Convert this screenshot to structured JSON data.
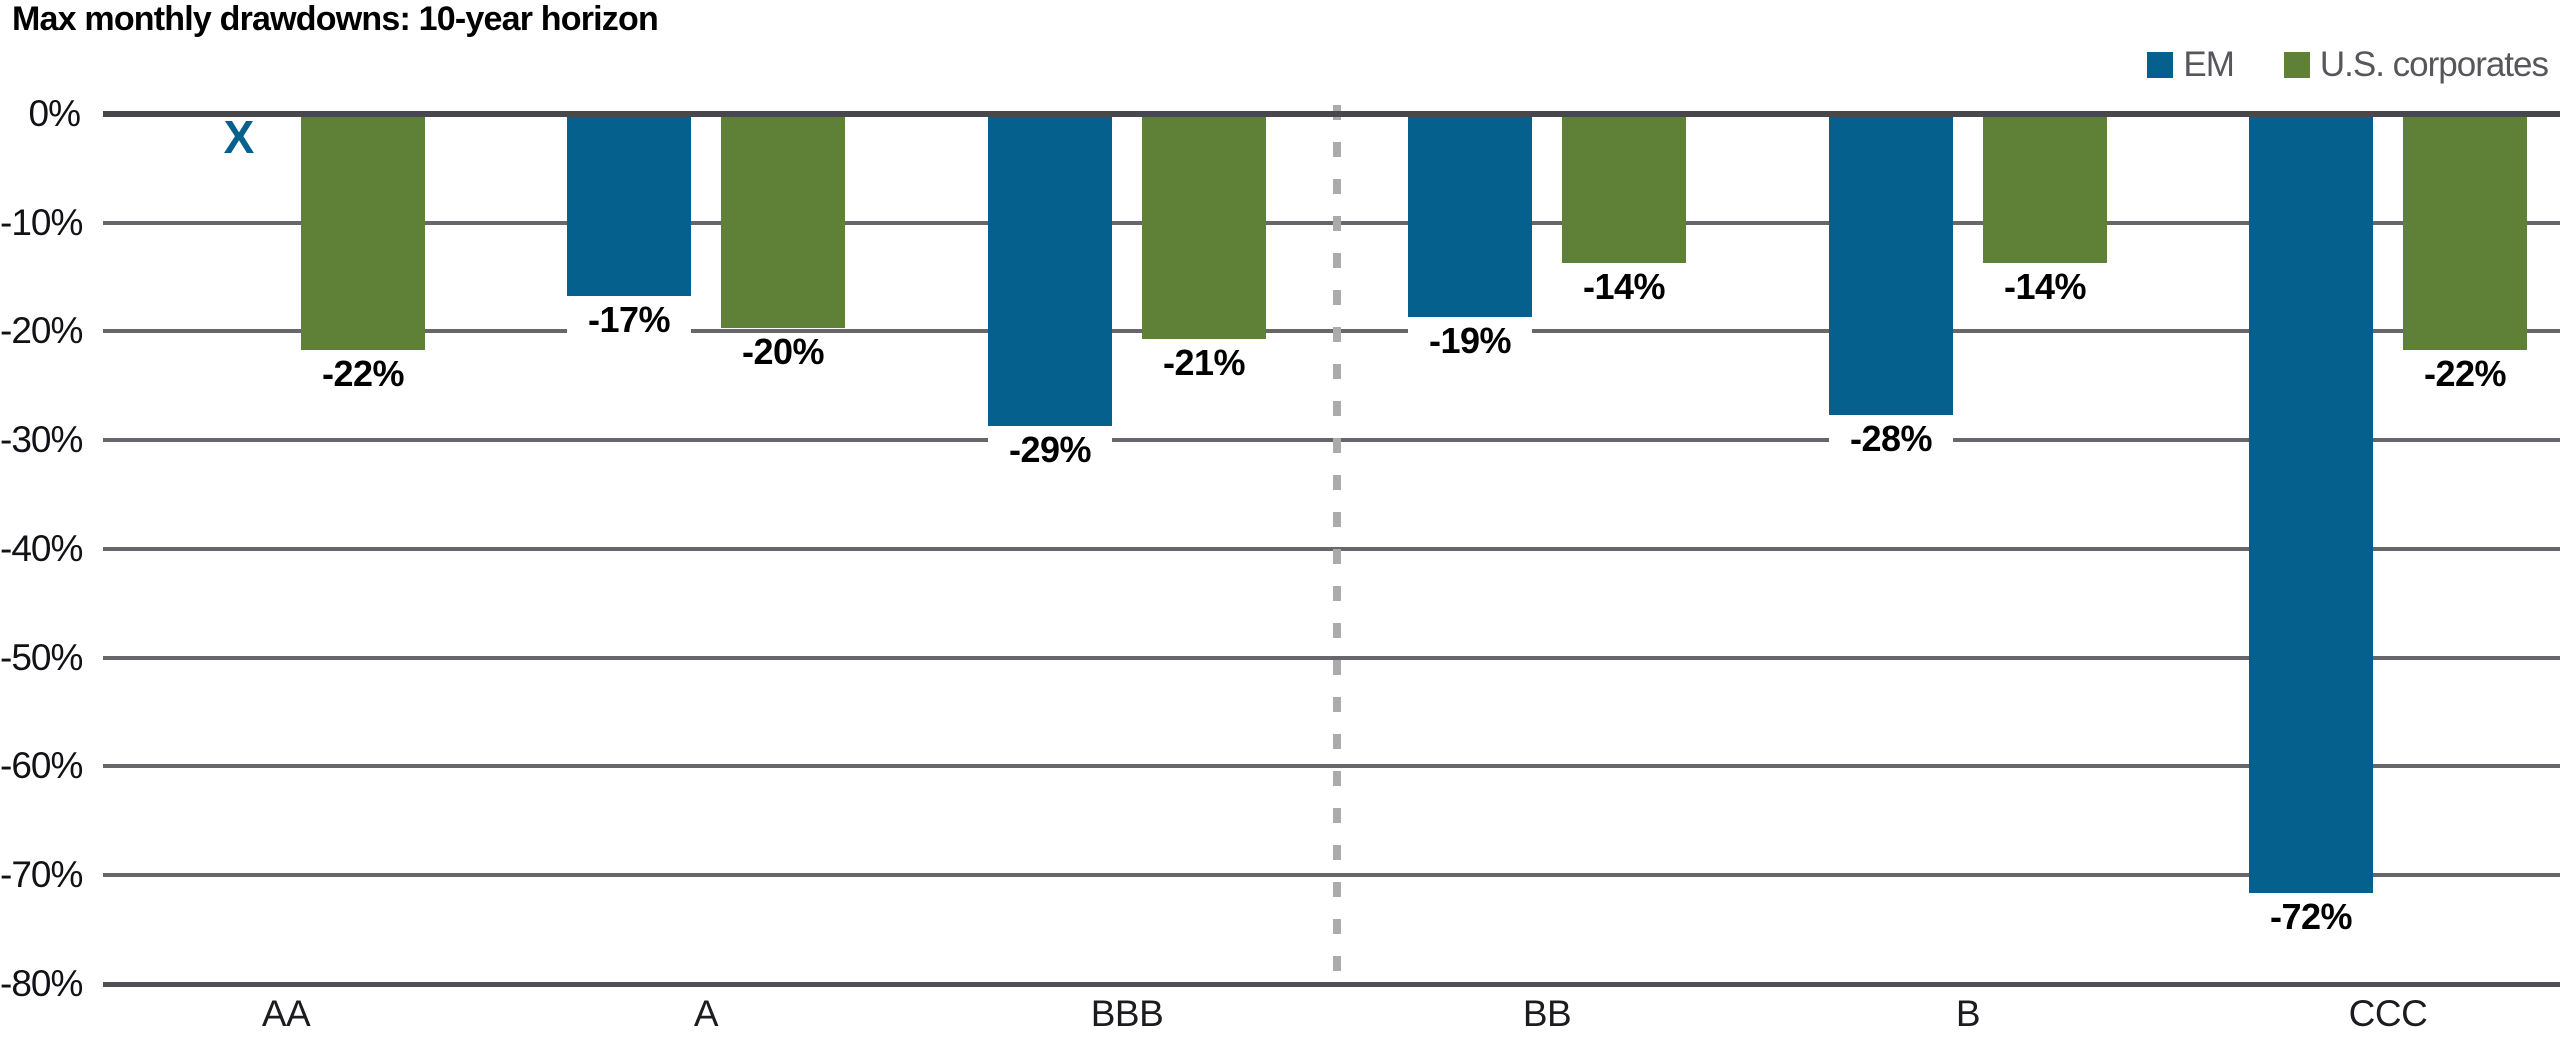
{
  "title": "Max monthly drawdowns: 10-year horizon",
  "legend": [
    {
      "label": "EM",
      "color": "#06608E"
    },
    {
      "label": "U.S. corporates",
      "color": "#5F8037"
    }
  ],
  "colors": {
    "em_blue": "#06608E",
    "us_corporates_green": "#5F8037",
    "legend_text": "#56575B",
    "gridline": "#66666B",
    "zero_line": "#47474C",
    "divider_dash": "#ABABAB",
    "value_label_text": "#000000",
    "value_label_background": "#FFFFFF"
  },
  "chart_data": {
    "type": "bar",
    "title": "Max monthly drawdowns: 10-year horizon",
    "categories": [
      "AA",
      "A",
      "BBB",
      "BB",
      "B",
      "CCC"
    ],
    "series": [
      {
        "name": "EM",
        "color": "#06608E",
        "values": [
          null,
          -17,
          -29,
          -19,
          -28,
          -72
        ],
        "labels": [
          null,
          "-17%",
          "-29%",
          "-19%",
          "-28%",
          "-72%"
        ]
      },
      {
        "name": "U.S. corporates",
        "color": "#5F8037",
        "values": [
          -22,
          -20,
          -21,
          -14,
          -14,
          -22
        ],
        "labels": [
          "-22%",
          "-20%",
          "-21%",
          "-14%",
          "-14%",
          "-22%"
        ]
      }
    ],
    "missing_marker": {
      "series": "EM",
      "category": "AA",
      "glyph": "X"
    },
    "y_ticks": [
      "0%",
      "-10%",
      "-20%",
      "-30%",
      "-40%",
      "-50%",
      "-60%",
      "-70%",
      "-80%"
    ],
    "ylim": [
      -80,
      0
    ],
    "grid": true,
    "divider_after_category": "BBB",
    "legend_position": "top-right"
  }
}
